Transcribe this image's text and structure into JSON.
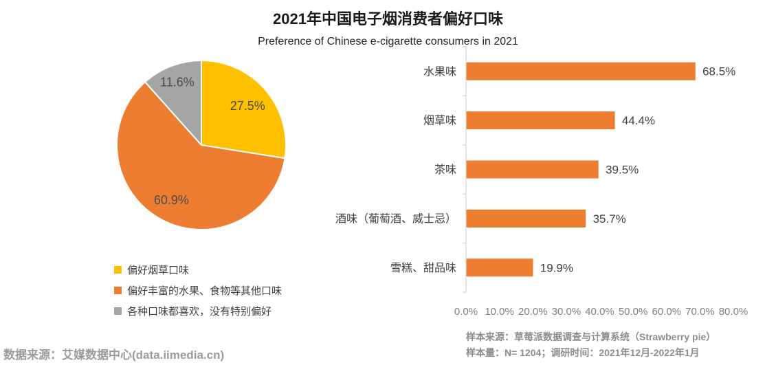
{
  "header": {
    "title": "2021年中国电子烟消费者偏好口味",
    "subtitle": "Preference of Chinese e-cigarette consumers in 2021"
  },
  "chart_data": [
    {
      "type": "pie",
      "name": "flavor-preference-share",
      "categories": [
        "偏好烟草口味",
        "偏好丰富的水果、食物等其他口味",
        "各种口味都喜欢，没有特别偏好"
      ],
      "values": [
        27.5,
        60.9,
        11.6
      ],
      "labels": [
        "27.5%",
        "60.9%",
        "11.6%"
      ],
      "colors": [
        "#FFC000",
        "#ED7D31",
        "#A5A5A5"
      ],
      "start_angle": "top",
      "direction": "clockwise",
      "legend_position": "bottom-left"
    },
    {
      "type": "bar",
      "name": "flavor-popularity",
      "orientation": "horizontal",
      "categories": [
        "水果味",
        "烟草味",
        "茶味",
        "酒味（葡萄酒、威士忌）",
        "雪糕、甜品味"
      ],
      "values": [
        68.5,
        44.4,
        39.5,
        35.7,
        19.9
      ],
      "value_labels": [
        "68.5%",
        "44.4%",
        "39.5%",
        "35.7%",
        "19.9%"
      ],
      "bar_color": "#ED7D31",
      "xlim": [
        0,
        80
      ],
      "x_ticks": [
        "0.0%",
        "10.0%",
        "20.0%",
        "30.0%",
        "40.0%",
        "50.0%",
        "60.0%",
        "70.0%",
        "80.0%"
      ],
      "grid": false
    }
  ],
  "footnotes": {
    "sample_source": "样本来源：草莓派数据调查与计算系统（Strawberry pie）",
    "sample_size": "样本量：N= 1204；调研时间：2021年12月-2022年1月",
    "data_source": "数据来源：艾媒数据中心(data.iimedia.cn)"
  }
}
